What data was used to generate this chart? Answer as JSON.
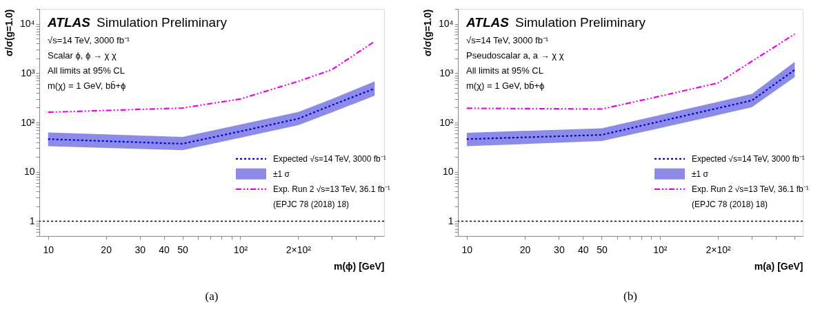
{
  "chart_data": [
    {
      "type": "line",
      "title": "ATLAS Simulation Preliminary",
      "xlabel": "m(ϕ) [GeV]",
      "ylabel": "σ/σ(g=1.0)",
      "log": "xy",
      "legend": "bottom right",
      "grid": false,
      "marker": "none",
      "x": [
        10,
        50,
        100,
        200,
        300,
        500
      ],
      "series": [
        {
          "name": "Expected √s=14 TeV, 3000 fb⁻¹",
          "color": "#0000cc",
          "line_style": "dotted",
          "values": [
            46,
            37,
            66,
            119,
            225,
            487
          ],
          "lower": [
            33,
            27.5,
            49,
            88,
            160,
            350
          ],
          "upper": [
            63,
            51,
            91,
            163,
            300,
            680
          ]
        },
        {
          "name": "Exp. Run 2 √s=13 TeV, 36.1 fb⁻¹",
          "color": "#ee00ee",
          "line_style": "dashed",
          "values": [
            161,
            196,
            299,
            680,
            1180,
            4400
          ]
        }
      ],
      "xlim": [
        9,
        560
      ],
      "ylim": [
        0.5,
        20000
      ],
      "xticks": [
        10,
        20,
        30,
        40,
        50,
        {
          "value": 60,
          "label": null
        },
        {
          "value": 70,
          "label": null
        },
        {
          "value": 80,
          "label": null
        },
        {
          "value": 90,
          "label": null
        },
        {
          "value": 100,
          "label": "10²"
        },
        {
          "value": 200,
          "label": "2×10²"
        },
        {
          "value": 300,
          "label": null
        },
        {
          "value": 400,
          "label": null
        },
        {
          "value": 500,
          "label": null
        }
      ],
      "yticks": [
        {
          "value": 0.5,
          "label": null
        },
        {
          "value": 0.6,
          "label": null
        },
        {
          "value": 0.7,
          "label": null
        },
        {
          "value": 0.8,
          "label": null
        },
        {
          "value": 0.9,
          "label": null
        },
        1,
        {
          "value": 2,
          "label": null
        },
        {
          "value": 3,
          "label": null
        },
        {
          "value": 4,
          "label": null
        },
        {
          "value": 5,
          "label": null
        },
        {
          "value": 6,
          "label": null
        },
        {
          "value": 7,
          "label": null
        },
        {
          "value": 8,
          "label": null
        },
        {
          "value": 9,
          "label": null
        },
        10,
        {
          "value": 20,
          "label": null
        },
        {
          "value": 30,
          "label": null
        },
        {
          "value": 40,
          "label": null
        },
        {
          "value": 50,
          "label": null
        },
        {
          "value": 60,
          "label": null
        },
        {
          "value": 70,
          "label": null
        },
        {
          "value": 80,
          "label": null
        },
        {
          "value": 90,
          "label": null
        },
        {
          "value": 100,
          "label": "10²"
        },
        {
          "value": 200,
          "label": null
        },
        {
          "value": 300,
          "label": null
        },
        {
          "value": 400,
          "label": null
        },
        {
          "value": 500,
          "label": null
        },
        {
          "value": 600,
          "label": null
        },
        {
          "value": 700,
          "label": null
        },
        {
          "value": 800,
          "label": null
        },
        {
          "value": 900,
          "label": null
        },
        {
          "value": 1000,
          "label": "10³"
        },
        {
          "value": 2000,
          "label": null
        },
        {
          "value": 3000,
          "label": null
        },
        {
          "value": 4000,
          "label": null
        },
        {
          "value": 5000,
          "label": null
        },
        {
          "value": 6000,
          "label": null
        },
        {
          "value": 7000,
          "label": null
        },
        {
          "value": 8000,
          "label": null
        },
        {
          "value": 9000,
          "label": null
        },
        {
          "value": 10000,
          "label": "10⁴"
        },
        {
          "value": 20000,
          "label": null
        }
      ],
      "ref_lines": [
        {
          "axis": "y",
          "value": 1,
          "color": "#000000",
          "line_style": "dotted"
        }
      ],
      "annotations": [
        "√s=14 TeV, 3000 fb⁻¹",
        "Scalar ϕ, ϕ → χ χ",
        "All limits at 95% CL",
        "m(χ) = 1 GeV, bb̄+ϕ",
        "±1 σ",
        "(EPJC 78 (2018) 18)",
        "(a)"
      ]
    },
    {
      "type": "line",
      "title": "ATLAS Simulation Preliminary",
      "xlabel": "m(a) [GeV]",
      "ylabel": "σ/σ(g=1.0)",
      "log": "xy",
      "legend": "bottom right",
      "grid": false,
      "marker": "none",
      "x": [
        10,
        50,
        100,
        200,
        300,
        500
      ],
      "series": [
        {
          "name": "Expected √s=14 TeV, 3000 fb⁻¹",
          "color": "#0000cc",
          "line_style": "dotted",
          "values": [
            46,
            56,
            105,
            195,
            280,
            1170
          ],
          "lower": [
            33,
            42,
            77,
            141,
            205,
            830
          ],
          "upper": [
            62,
            76,
            141,
            263,
            380,
            1700
          ]
        },
        {
          "name": "Exp. Run 2 √s=13 TeV, 36.1 fb⁻¹",
          "color": "#ee00ee",
          "line_style": "dashed",
          "values": [
            194,
            187,
            340,
            630,
            1740,
            6200
          ]
        }
      ],
      "xlim": [
        9,
        550
      ],
      "ylim": [
        0.5,
        20000
      ],
      "xticks": [
        10,
        20,
        30,
        40,
        50,
        {
          "value": 60,
          "label": null
        },
        {
          "value": 70,
          "label": null
        },
        {
          "value": 80,
          "label": null
        },
        {
          "value": 90,
          "label": null
        },
        {
          "value": 100,
          "label": "10²"
        },
        {
          "value": 200,
          "label": "2×10²"
        },
        {
          "value": 300,
          "label": null
        },
        {
          "value": 400,
          "label": null
        },
        {
          "value": 500,
          "label": null
        }
      ],
      "yticks": [
        {
          "value": 0.5,
          "label": null
        },
        {
          "value": 0.6,
          "label": null
        },
        {
          "value": 0.7,
          "label": null
        },
        {
          "value": 0.8,
          "label": null
        },
        {
          "value": 0.9,
          "label": null
        },
        1,
        {
          "value": 2,
          "label": null
        },
        {
          "value": 3,
          "label": null
        },
        {
          "value": 4,
          "label": null
        },
        {
          "value": 5,
          "label": null
        },
        {
          "value": 6,
          "label": null
        },
        {
          "value": 7,
          "label": null
        },
        {
          "value": 8,
          "label": null
        },
        {
          "value": 9,
          "label": null
        },
        10,
        {
          "value": 20,
          "label": null
        },
        {
          "value": 30,
          "label": null
        },
        {
          "value": 40,
          "label": null
        },
        {
          "value": 50,
          "label": null
        },
        {
          "value": 60,
          "label": null
        },
        {
          "value": 70,
          "label": null
        },
        {
          "value": 80,
          "label": null
        },
        {
          "value": 90,
          "label": null
        },
        {
          "value": 100,
          "label": "10²"
        },
        {
          "value": 200,
          "label": null
        },
        {
          "value": 300,
          "label": null
        },
        {
          "value": 400,
          "label": null
        },
        {
          "value": 500,
          "label": null
        },
        {
          "value": 600,
          "label": null
        },
        {
          "value": 700,
          "label": null
        },
        {
          "value": 800,
          "label": null
        },
        {
          "value": 900,
          "label": null
        },
        {
          "value": 1000,
          "label": "10³"
        },
        {
          "value": 2000,
          "label": null
        },
        {
          "value": 3000,
          "label": null
        },
        {
          "value": 4000,
          "label": null
        },
        {
          "value": 5000,
          "label": null
        },
        {
          "value": 6000,
          "label": null
        },
        {
          "value": 7000,
          "label": null
        },
        {
          "value": 8000,
          "label": null
        },
        {
          "value": 9000,
          "label": null
        },
        {
          "value": 10000,
          "label": "10⁴"
        },
        {
          "value": 20000,
          "label": null
        }
      ],
      "ref_lines": [
        {
          "axis": "y",
          "value": 1,
          "color": "#000000",
          "line_style": "dotted"
        }
      ],
      "annotations": [
        "√s=14 TeV, 3000 fb⁻¹",
        "Pseudoscalar a, a → χ χ",
        "All limits at 95% CL",
        "m(χ) = 1 GeV, bb̄+ϕ",
        "±1 σ",
        "(EPJC 78 (2018) 18)",
        "(b)"
      ]
    }
  ]
}
